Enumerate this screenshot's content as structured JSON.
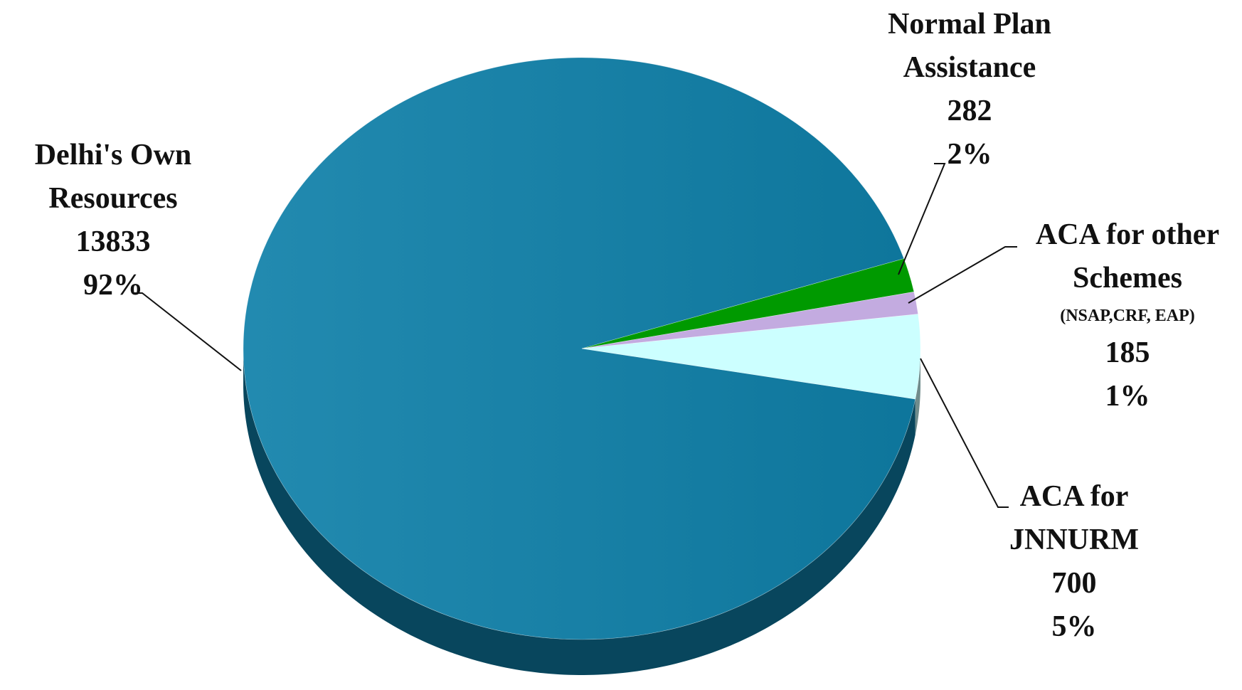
{
  "chart_data": {
    "type": "pie",
    "categories": [
      "Delhi's Own Resources",
      "Normal Plan Assistance",
      "ACA for other Schemes",
      "ACA for JNNURM"
    ],
    "values": [
      13833,
      282,
      185,
      700
    ],
    "percent_labels": [
      "92%",
      "2%",
      "1%",
      "5%"
    ],
    "colors": [
      "#0f80a9",
      "#009a00",
      "#c3abe0",
      "#ccffff"
    ],
    "annotations": [
      {
        "text": "(NSAP,CRF, EAP)",
        "category": 2
      }
    ]
  }
}
